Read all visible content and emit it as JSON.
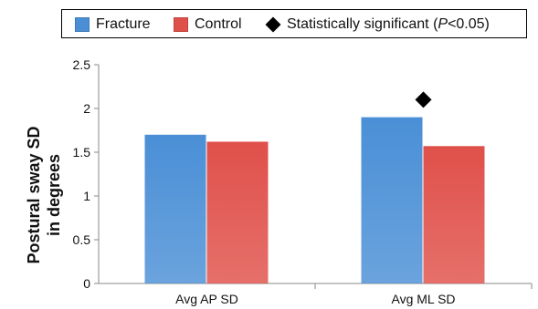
{
  "chart_data": {
    "type": "bar",
    "categories": [
      "Avg AP SD",
      "Avg ML SD"
    ],
    "series": [
      {
        "name": "Fracture",
        "values": [
          1.7,
          1.9
        ],
        "color": "#4a8fd6"
      },
      {
        "name": "Control",
        "values": [
          1.62,
          1.57
        ],
        "color": "#e0504a"
      }
    ],
    "ylabel_lines": [
      "Postural sway SD",
      "in degrees"
    ],
    "ylim": [
      0,
      2.5
    ],
    "yticks": [
      "0",
      "0.5",
      "1",
      "1.5",
      "2",
      "2.5"
    ],
    "annotation": {
      "name": "Statistically significant (P<0.05)",
      "label_prefix": "Statistically significant (",
      "label_p": "P",
      "label_suffix": "<0.05)",
      "category": "Avg ML SD",
      "y": 2.1,
      "marker": "black-diamond"
    },
    "legend_position": "top",
    "grid": false
  }
}
